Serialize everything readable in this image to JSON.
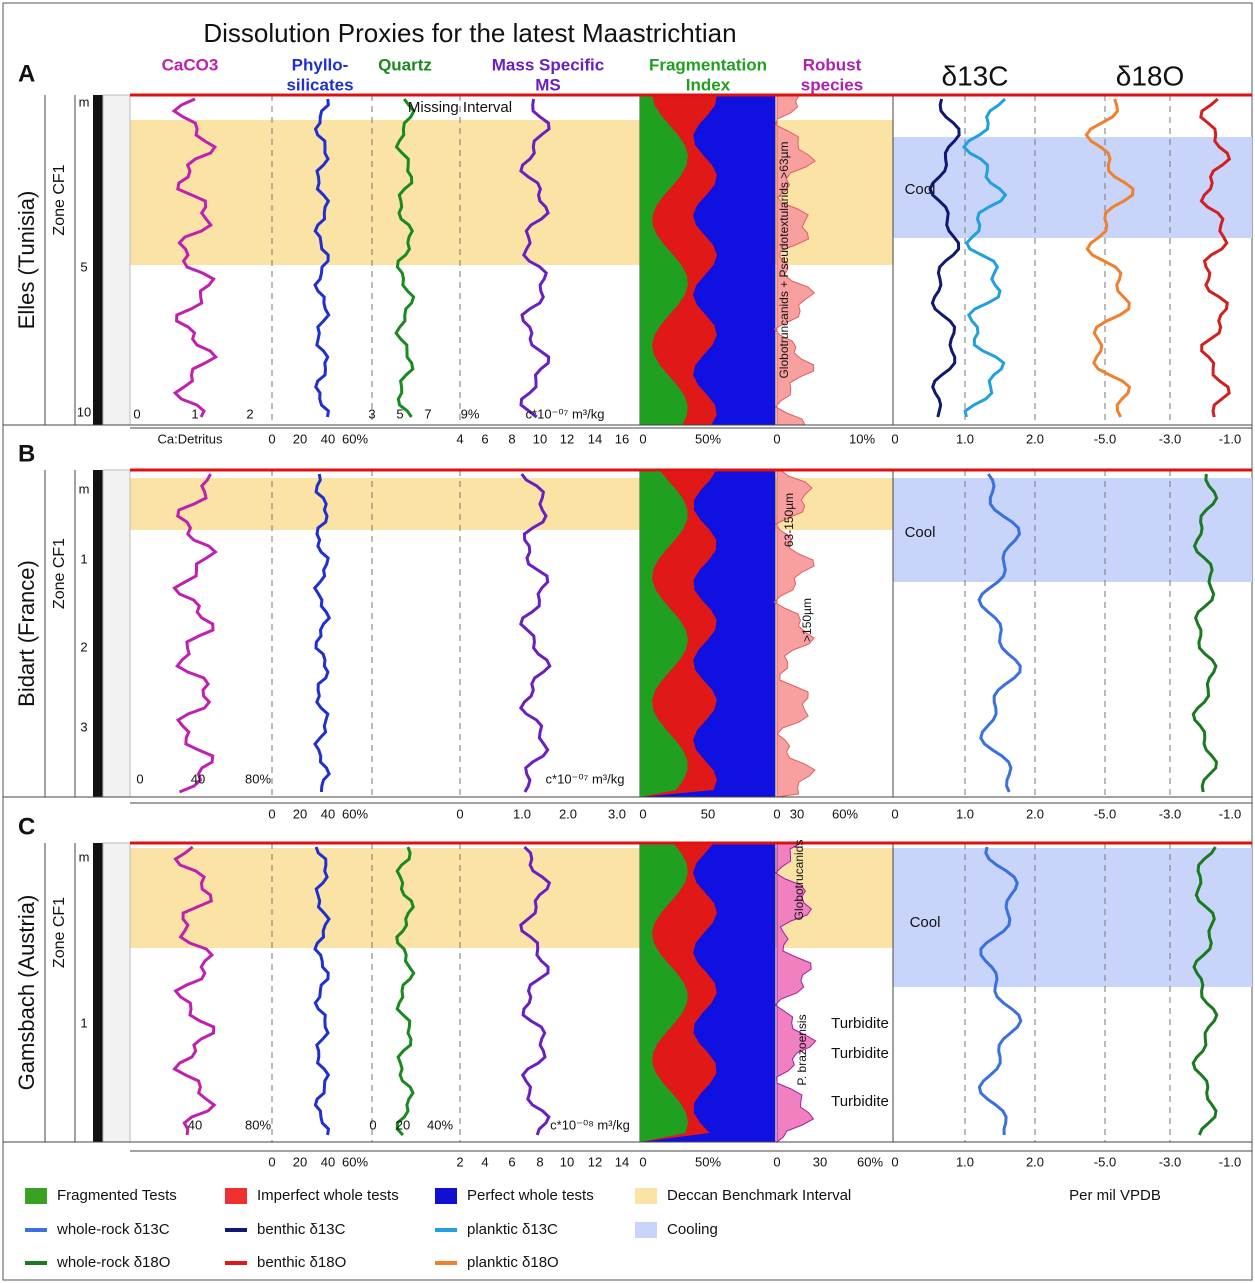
{
  "header": {
    "title": "Dissolution Proxies for the latest Maastrichtian",
    "columns": [
      "CaCO3",
      "Phyllo-",
      "silicates",
      "Quartz",
      "Mass Specific",
      "MS",
      "Fragmentation",
      "Index",
      "Robust",
      "species",
      "δ13C",
      "δ18O"
    ]
  },
  "panels": [
    {
      "letter": "A",
      "site": "Elles (Tunisia)",
      "zone": "Zone CF1",
      "depths": [
        "m",
        "5",
        "10"
      ],
      "annotations": [
        "Missing Interval",
        "Cool",
        "Globotruncanids + Pseudotextularids >63µm"
      ],
      "inner_ticks": [
        "0",
        "1",
        "2",
        "3",
        "5",
        "7",
        "9%",
        "c*10⁻⁰⁷ m³/kg"
      ],
      "axis_ticks": [
        "Ca:Detritus",
        "0",
        "20",
        "40",
        "60%",
        "4",
        "6",
        "8",
        "10",
        "12",
        "14",
        "16",
        "0",
        "50%",
        "0",
        "10%",
        "0",
        "1.0",
        "2.0",
        "-5.0",
        "-3.0",
        "-1.0"
      ]
    },
    {
      "letter": "B",
      "site": "Bidart (France)",
      "zone": "Zone CF1",
      "depths": [
        "m",
        "1",
        "2",
        "3"
      ],
      "annotations": [
        "63-150µm",
        ">150µm",
        "Cool"
      ],
      "inner_ticks": [
        "0",
        "40",
        "80%",
        "c*10⁻⁰⁷ m³/kg"
      ],
      "axis_ticks": [
        "0",
        "20",
        "40",
        "60%",
        "0",
        "1.0",
        "2.0",
        "3.0",
        "0",
        "50",
        "0",
        "30",
        "60%",
        "0",
        "1.0",
        "2.0",
        "-5.0",
        "-3.0",
        "-1.0"
      ]
    },
    {
      "letter": "C",
      "site": "Gamsbach (Austria)",
      "zone": "Zone CF1",
      "depths": [
        "m",
        "1"
      ],
      "annotations": [
        "Globotrucanids",
        "P. brazoensis",
        "Turbidite",
        "Turbidite",
        "Turbidite",
        "Cool"
      ],
      "inner_ticks": [
        "40",
        "80%",
        "0",
        "20",
        "40%",
        "c*10⁻⁰⁸ m³/kg"
      ],
      "axis_ticks": [
        "0",
        "20",
        "40",
        "60%",
        "2",
        "4",
        "6",
        "8",
        "10",
        "12",
        "14",
        "0",
        "50%",
        "0",
        "30",
        "60%",
        "0",
        "1.0",
        "2.0",
        "-5.0",
        "-3.0",
        "-1.0"
      ]
    }
  ],
  "legend": {
    "items": [
      "Fragmented Tests",
      "Imperfect whole tests",
      "Perfect whole tests",
      "Deccan Benchmark Interval",
      "whole-rock δ13C",
      "benthic δ13C",
      "planktic δ13C",
      "Cooling",
      "whole-rock δ18O",
      "benthic δ18O",
      "planktic δ18O"
    ],
    "axis_label": "Per mil VPDB"
  }
}
